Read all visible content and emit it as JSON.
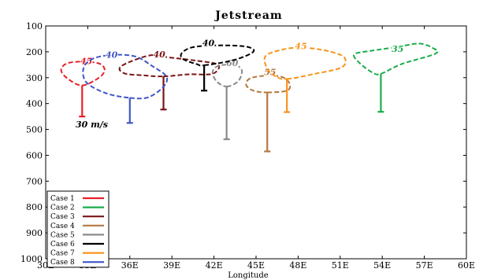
{
  "chart_data": {
    "type": "line",
    "title": "Jetstream",
    "xlabel": "Longitude",
    "ylabel": "",
    "xlim": [
      30,
      60
    ],
    "ylim": [
      1000,
      100
    ],
    "x_ticks": [
      30,
      33,
      36,
      39,
      42,
      45,
      48,
      51,
      54,
      57,
      60
    ],
    "x_tick_labels": [
      "30E",
      "33E",
      "36E",
      "39E",
      "42E",
      "45E",
      "48E",
      "51E",
      "54E",
      "57E",
      "60E"
    ],
    "y_ticks": [
      100,
      200,
      300,
      400,
      500,
      600,
      700,
      800,
      900,
      1000
    ],
    "y_tick_labels": [
      "100",
      "200",
      "300",
      "400",
      "500",
      "600",
      "700",
      "800",
      "900",
      "1000"
    ],
    "legend_position": "bottom-left",
    "scale_annotation": "30 m/s",
    "series": [
      {
        "name": "Case 1",
        "color": "#e8202a",
        "label": "45",
        "label_pos": [
          32.9,
          247
        ],
        "stem": {
          "x": 32.6,
          "top": 330,
          "bottom": 450
        },
        "outline": [
          [
            32.6,
            330
          ],
          [
            33.8,
            300
          ],
          [
            34.2,
            270
          ],
          [
            33.8,
            245
          ],
          [
            32.6,
            238
          ],
          [
            31.5,
            245
          ],
          [
            31.1,
            272
          ],
          [
            31.6,
            305
          ]
        ]
      },
      {
        "name": "Case 2",
        "color": "#1aad4b",
        "label": "35",
        "label_pos": [
          55.1,
          200
        ],
        "stem": {
          "x": 53.9,
          "top": 285,
          "bottom": 432
        },
        "outline": [
          [
            53.9,
            285
          ],
          [
            55.4,
            247
          ],
          [
            57.8,
            207
          ],
          [
            57.6,
            185
          ],
          [
            56.6,
            168
          ],
          [
            55.0,
            182
          ],
          [
            53.2,
            196
          ],
          [
            52.0,
            210
          ],
          [
            52.4,
            244
          ],
          [
            53.3,
            280
          ]
        ]
      },
      {
        "name": "Case 3",
        "color": "#7b1418",
        "label": "40",
        "label_pos": [
          38.1,
          222
        ],
        "stem": {
          "x": 38.4,
          "top": 295,
          "bottom": 423
        },
        "outline": [
          [
            38.4,
            295
          ],
          [
            40.2,
            287
          ],
          [
            41.9,
            285
          ],
          [
            42.3,
            250
          ],
          [
            40.7,
            234
          ],
          [
            38.8,
            222
          ],
          [
            37.4,
            214
          ],
          [
            35.4,
            255
          ],
          [
            35.6,
            283
          ],
          [
            37.0,
            291
          ]
        ]
      },
      {
        "name": "Case 4",
        "color": "#b5773f",
        "label": "55",
        "label_pos": [
          46.0,
          290
        ],
        "stem": {
          "x": 45.8,
          "top": 357,
          "bottom": 585
        },
        "outline": [
          [
            45.8,
            357
          ],
          [
            47.2,
            350
          ],
          [
            47.4,
            324
          ],
          [
            46.9,
            298
          ],
          [
            45.8,
            292
          ],
          [
            44.6,
            302
          ],
          [
            44.3,
            328
          ],
          [
            44.8,
            350
          ]
        ]
      },
      {
        "name": "Case 5",
        "color": "#8a8a8a",
        "label": "60",
        "label_pos": [
          43.3,
          255
        ],
        "stem": {
          "x": 42.9,
          "top": 334,
          "bottom": 538
        },
        "outline": [
          [
            42.9,
            334
          ],
          [
            43.7,
            315
          ],
          [
            44.0,
            277
          ],
          [
            43.7,
            255
          ],
          [
            42.9,
            250
          ],
          [
            42.2,
            257
          ],
          [
            41.9,
            280
          ],
          [
            42.2,
            315
          ]
        ]
      },
      {
        "name": "Case 6",
        "color": "#000000",
        "label": "40",
        "label_pos": [
          41.6,
          177
        ],
        "stem": {
          "x": 41.3,
          "top": 252,
          "bottom": 350
        },
        "outline": [
          [
            41.3,
            252
          ],
          [
            43.4,
            232
          ],
          [
            44.8,
            200
          ],
          [
            44.3,
            180
          ],
          [
            42.3,
            175
          ],
          [
            40.5,
            182
          ],
          [
            39.7,
            205
          ],
          [
            39.8,
            228
          ],
          [
            40.8,
            248
          ]
        ]
      },
      {
        "name": "Case 7",
        "color": "#f7941d",
        "label": "45",
        "label_pos": [
          48.2,
          190
        ],
        "stem": {
          "x": 47.2,
          "top": 305,
          "bottom": 433
        },
        "outline": [
          [
            47.2,
            305
          ],
          [
            49.2,
            285
          ],
          [
            51.1,
            260
          ],
          [
            51.3,
            222
          ],
          [
            50.2,
            198
          ],
          [
            48.6,
            185
          ],
          [
            47.2,
            188
          ],
          [
            45.7,
            215
          ],
          [
            45.8,
            265
          ],
          [
            46.4,
            295
          ]
        ]
      },
      {
        "name": "Case 8",
        "color": "#3f57c7",
        "label": "40",
        "label_pos": [
          34.7,
          223
        ],
        "stem": {
          "x": 36.0,
          "top": 378,
          "bottom": 475
        },
        "outline": [
          [
            36.0,
            378
          ],
          [
            37.3,
            376
          ],
          [
            38.4,
            335
          ],
          [
            38.6,
            295
          ],
          [
            37.6,
            255
          ],
          [
            36.4,
            218
          ],
          [
            34.8,
            212
          ],
          [
            33.4,
            226
          ],
          [
            32.7,
            262
          ],
          [
            32.9,
            318
          ],
          [
            34.3,
            360
          ]
        ]
      }
    ]
  }
}
